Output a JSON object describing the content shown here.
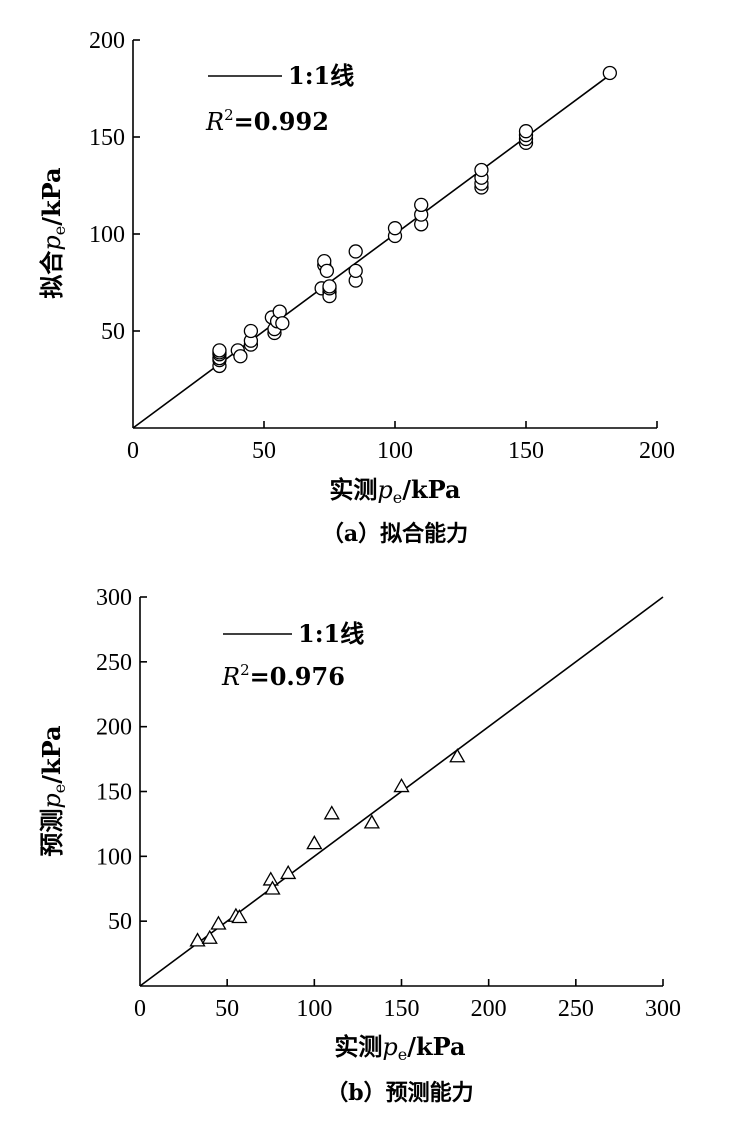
{
  "chart_data": [
    {
      "type": "scatter",
      "caption": "（a）拟合能力",
      "xlabel": {
        "prefix": "实测",
        "sym": "p",
        "sub": "e",
        "suffix": "/kPa"
      },
      "ylabel": {
        "prefix": "拟合",
        "sym": "p",
        "sub": "e",
        "suffix": "/kPa"
      },
      "xlim": [
        0,
        200
      ],
      "ylim": [
        0,
        200
      ],
      "xticks": [
        "0",
        "50",
        "100",
        "150",
        "200"
      ],
      "yticks": [
        "50",
        "100",
        "150",
        "200"
      ],
      "reference_line": {
        "label": "1:1线",
        "from": [
          0,
          0
        ],
        "to": [
          182,
          182
        ]
      },
      "r2_label": {
        "sym": "R",
        "sup": "2",
        "value": "=0.992"
      },
      "marker": "circle",
      "points": [
        [
          33,
          32
        ],
        [
          33,
          35
        ],
        [
          33,
          36
        ],
        [
          33,
          38
        ],
        [
          33,
          39
        ],
        [
          33,
          40
        ],
        [
          40,
          40
        ],
        [
          41,
          37
        ],
        [
          45,
          43
        ],
        [
          45,
          45
        ],
        [
          45,
          50
        ],
        [
          53,
          57
        ],
        [
          54,
          49
        ],
        [
          54,
          51
        ],
        [
          55,
          55
        ],
        [
          56,
          60
        ],
        [
          57,
          54
        ],
        [
          72,
          72
        ],
        [
          73,
          84
        ],
        [
          73,
          86
        ],
        [
          74,
          81
        ],
        [
          75,
          70
        ],
        [
          75,
          68
        ],
        [
          75,
          72
        ],
        [
          75,
          73
        ],
        [
          85,
          76
        ],
        [
          85,
          81
        ],
        [
          85,
          91
        ],
        [
          100,
          99
        ],
        [
          100,
          103
        ],
        [
          110,
          105
        ],
        [
          110,
          110
        ],
        [
          110,
          115
        ],
        [
          133,
          124
        ],
        [
          133,
          126
        ],
        [
          133,
          129
        ],
        [
          133,
          133
        ],
        [
          150,
          147
        ],
        [
          150,
          149
        ],
        [
          150,
          151
        ],
        [
          150,
          153
        ],
        [
          182,
          183
        ]
      ]
    },
    {
      "type": "scatter",
      "caption": "（b）预测能力",
      "xlabel": {
        "prefix": "实测",
        "sym": "p",
        "sub": "e",
        "suffix": "/kPa"
      },
      "ylabel": {
        "prefix": "预测",
        "sym": "p",
        "sub": "e",
        "suffix": "/kPa"
      },
      "xlim": [
        0,
        300
      ],
      "ylim": [
        0,
        300
      ],
      "xticks": [
        "0",
        "50",
        "100",
        "150",
        "200",
        "250",
        "300"
      ],
      "yticks": [
        "50",
        "100",
        "150",
        "200",
        "250",
        "300"
      ],
      "reference_line": {
        "label": "1:1线",
        "from": [
          0,
          0
        ],
        "to": [
          300,
          300
        ]
      },
      "r2_label": {
        "sym": "R",
        "sup": "2",
        "value": "=0.976"
      },
      "marker": "triangle",
      "points": [
        [
          33,
          35
        ],
        [
          40,
          37
        ],
        [
          45,
          48
        ],
        [
          55,
          54
        ],
        [
          57,
          53
        ],
        [
          75,
          82
        ],
        [
          76,
          75
        ],
        [
          85,
          87
        ],
        [
          100,
          110
        ],
        [
          110,
          133
        ],
        [
          133,
          126
        ],
        [
          150,
          154
        ],
        [
          182,
          177
        ]
      ]
    }
  ]
}
